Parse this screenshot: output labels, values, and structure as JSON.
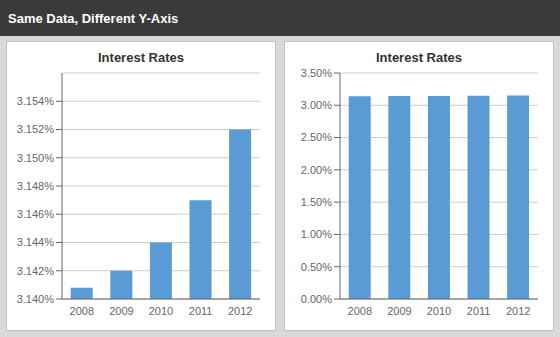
{
  "title": "Same Data, Different Y-Axis",
  "chart_data": [
    {
      "type": "bar",
      "title": "Interest Rates",
      "categories": [
        "2008",
        "2009",
        "2010",
        "2011",
        "2012"
      ],
      "values": [
        0.031408,
        0.03142,
        0.03144,
        0.03147,
        0.03152
      ],
      "color": "#5B9BD5",
      "ylim": [
        0.0314,
        0.03156
      ],
      "yticks": [
        {
          "value": 0.0314,
          "label": "3.140%"
        },
        {
          "value": 0.03142,
          "label": "3.142%"
        },
        {
          "value": 0.03144,
          "label": "3.144%"
        },
        {
          "value": 0.03146,
          "label": "3.146%"
        },
        {
          "value": 0.03148,
          "label": "3.148%"
        },
        {
          "value": 0.0315,
          "label": "3.150%"
        },
        {
          "value": 0.03152,
          "label": "3.152%"
        },
        {
          "value": 0.03154,
          "label": "3.154%"
        }
      ],
      "grid": true
    },
    {
      "type": "bar",
      "title": "Interest Rates",
      "categories": [
        "2008",
        "2009",
        "2010",
        "2011",
        "2012"
      ],
      "values": [
        0.031408,
        0.03142,
        0.03144,
        0.03147,
        0.03152
      ],
      "color": "#5B9BD5",
      "ylim": [
        0.0,
        0.035
      ],
      "yticks": [
        {
          "value": 0.0,
          "label": "0.00%"
        },
        {
          "value": 0.005,
          "label": "0.50%"
        },
        {
          "value": 0.01,
          "label": "1.00%"
        },
        {
          "value": 0.015,
          "label": "1.50%"
        },
        {
          "value": 0.02,
          "label": "2.00%"
        },
        {
          "value": 0.025,
          "label": "2.50%"
        },
        {
          "value": 0.03,
          "label": "3.00%"
        },
        {
          "value": 0.035,
          "label": "3.50%"
        }
      ],
      "grid": true
    }
  ]
}
